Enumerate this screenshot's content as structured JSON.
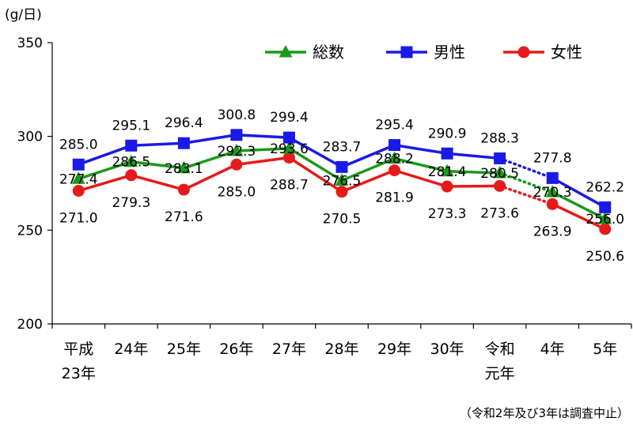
{
  "chart_data": {
    "type": "line",
    "unit_label": "(g/日)",
    "ylim": [
      200,
      350
    ],
    "yticks": [
      200,
      250,
      300,
      350
    ],
    "grid": false,
    "legend_position": "top-right",
    "categories": [
      [
        "平成",
        "23年"
      ],
      [
        "24年"
      ],
      [
        "25年"
      ],
      [
        "26年"
      ],
      [
        "27年"
      ],
      [
        "28年"
      ],
      [
        "29年"
      ],
      [
        "30年"
      ],
      [
        "令和",
        "元年"
      ],
      [
        "4年"
      ],
      [
        "5年"
      ]
    ],
    "series": [
      {
        "name": "総数",
        "color": "#1a9a1a",
        "marker": "triangle",
        "values": [
          277.4,
          286.5,
          283.1,
          292.3,
          293.6,
          276.5,
          288.2,
          281.4,
          280.5,
          270.3,
          256.0
        ],
        "labels": [
          "277.4",
          "286.5",
          "283.1",
          "292.3",
          "293.6",
          "276.5",
          "288.2",
          "281.4",
          "280.5",
          "270.3",
          "256.0"
        ]
      },
      {
        "name": "男性",
        "color": "#1a1ae6",
        "marker": "square",
        "values": [
          285.0,
          295.1,
          296.4,
          300.8,
          299.4,
          283.7,
          295.4,
          290.9,
          288.3,
          277.8,
          262.2
        ],
        "labels": [
          "285.0",
          "295.1",
          "296.4",
          "300.8",
          "299.4",
          "283.7",
          "295.4",
          "290.9",
          "288.3",
          "277.8",
          "262.2"
        ]
      },
      {
        "name": "女性",
        "color": "#e61a1a",
        "marker": "circle",
        "values": [
          271.0,
          279.3,
          271.6,
          285.0,
          288.7,
          270.5,
          281.9,
          273.3,
          273.6,
          263.9,
          250.6
        ],
        "labels": [
          "271.0",
          "279.3",
          "271.6",
          "285.0",
          "288.7",
          "270.5",
          "281.9",
          "273.3",
          "273.6",
          "263.9",
          "250.6"
        ]
      }
    ],
    "gap_note": "（令和2年及び3年は調査中止）"
  }
}
